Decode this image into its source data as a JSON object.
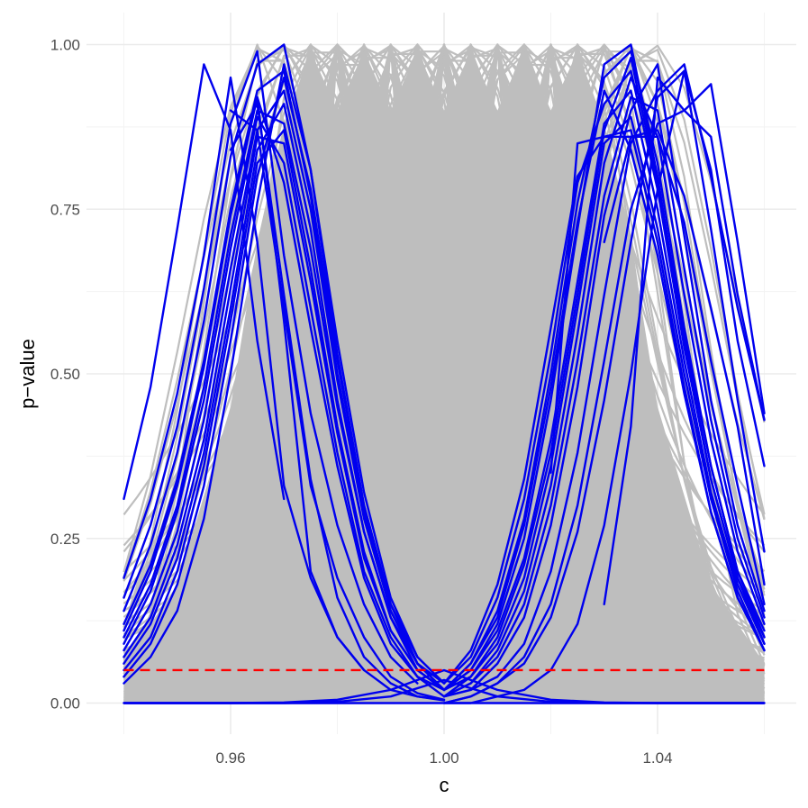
{
  "chart_data": {
    "type": "line",
    "title": "",
    "xlabel": "c",
    "ylabel": "p−value",
    "xlim": [
      0.94,
      1.06
    ],
    "ylim": [
      0,
      1
    ],
    "grid": true,
    "legend": "none",
    "x_ticks": [
      {
        "value": 0.96,
        "label": "0.96"
      },
      {
        "value": 1.0,
        "label": "1.00"
      },
      {
        "value": 1.04,
        "label": "1.04"
      }
    ],
    "y_ticks": [
      {
        "value": 0.0,
        "label": "0.00"
      },
      {
        "value": 0.25,
        "label": "0.25"
      },
      {
        "value": 0.5,
        "label": "0.50"
      },
      {
        "value": 0.75,
        "label": "0.75"
      },
      {
        "value": 1.0,
        "label": "1.00"
      }
    ],
    "reference_line": {
      "y": 0.05,
      "style": "dashed",
      "color": "#ff0000"
    },
    "colors": {
      "gray_curves": "#bebebe",
      "blue_curves": "#0000ee",
      "grid_major": "#ebebeb",
      "grid_minor": "#f3f3f3"
    },
    "gray_curve_peaks": [
      0.975,
      0.98,
      0.985,
      0.99,
      0.995,
      1.0,
      1.005,
      1.01,
      1.015,
      1.02,
      1.025
    ],
    "blue_curves": [
      {
        "x": [
          0.94,
          0.945,
          0.95,
          0.955,
          0.96,
          0.965,
          0.97
        ],
        "y": [
          0.31,
          0.48,
          0.72,
          0.97,
          0.87,
          0.55,
          0.31
        ]
      },
      {
        "x": [
          0.94,
          0.945,
          0.95,
          0.955,
          0.96,
          0.965,
          0.97,
          0.975,
          0.98,
          0.985
        ],
        "y": [
          0.19,
          0.31,
          0.47,
          0.68,
          0.95,
          0.7,
          0.33,
          0.19,
          0.1,
          0.05
        ]
      },
      {
        "x": [
          0.94,
          0.945,
          0.95,
          0.955,
          0.96,
          0.965,
          0.97,
          0.975,
          0.98,
          0.985,
          0.99,
          0.995
        ],
        "y": [
          0.16,
          0.27,
          0.42,
          0.63,
          0.88,
          0.99,
          0.68,
          0.44,
          0.27,
          0.15,
          0.07,
          0.03
        ]
      },
      {
        "x": [
          0.94,
          0.945,
          0.95,
          0.955,
          0.96,
          0.965,
          0.97,
          0.975,
          0.98,
          0.985,
          0.99,
          0.995,
          1.0
        ],
        "y": [
          0.14,
          0.24,
          0.38,
          0.58,
          0.83,
          0.97,
          1.0,
          0.81,
          0.53,
          0.3,
          0.15,
          0.06,
          0.02
        ]
      },
      {
        "x": [
          0.94,
          0.945,
          0.95,
          0.955,
          0.96,
          0.965,
          0.97,
          0.975,
          0.98,
          0.985,
          0.99,
          0.995,
          1.0
        ],
        "y": [
          0.12,
          0.21,
          0.34,
          0.52,
          0.75,
          0.93,
          0.96,
          0.77,
          0.5,
          0.29,
          0.14,
          0.06,
          0.02
        ]
      },
      {
        "x": [
          0.94,
          0.945,
          0.95,
          0.955,
          0.96,
          0.965,
          0.97,
          0.975,
          0.98,
          0.985,
          0.99,
          0.995,
          1.0
        ],
        "y": [
          0.1,
          0.18,
          0.3,
          0.48,
          0.71,
          0.9,
          0.88,
          0.69,
          0.45,
          0.26,
          0.13,
          0.06,
          0.03
        ]
      },
      {
        "x": [
          0.94,
          0.945,
          0.95,
          0.955,
          0.96,
          0.965,
          0.97,
          0.975,
          0.98,
          0.985,
          0.99,
          0.995,
          1.0
        ],
        "y": [
          0.08,
          0.15,
          0.26,
          0.43,
          0.66,
          0.87,
          0.93,
          0.75,
          0.49,
          0.28,
          0.14,
          0.06,
          0.02
        ]
      },
      {
        "x": [
          0.94,
          0.945,
          0.95,
          0.955,
          0.96,
          0.965,
          0.97,
          0.975,
          0.98,
          0.985,
          0.99,
          0.995,
          1.0
        ],
        "y": [
          0.06,
          0.12,
          0.22,
          0.38,
          0.6,
          0.84,
          0.91,
          0.72,
          0.46,
          0.26,
          0.13,
          0.05,
          0.02
        ]
      },
      {
        "x": [
          0.94,
          0.945,
          0.95,
          0.955,
          0.96,
          0.965,
          0.97,
          0.975,
          0.98,
          0.985,
          0.99,
          0.995,
          1.0
        ],
        "y": [
          0.04,
          0.09,
          0.18,
          0.33,
          0.55,
          0.8,
          0.95,
          0.78,
          0.52,
          0.3,
          0.15,
          0.07,
          0.03
        ]
      },
      {
        "x": [
          0.94,
          0.945,
          0.95,
          0.955,
          0.96,
          0.965,
          0.97,
          0.975,
          0.98,
          0.985,
          0.99,
          0.995,
          1.0
        ],
        "y": [
          0.03,
          0.07,
          0.14,
          0.28,
          0.5,
          0.76,
          0.97,
          0.81,
          0.55,
          0.32,
          0.16,
          0.07,
          0.03
        ]
      },
      {
        "x": [
          0.94,
          0.945,
          0.95,
          0.955,
          0.96,
          0.965,
          0.97,
          0.975,
          0.98,
          0.985,
          0.99,
          0.995,
          1.0
        ],
        "y": [
          0.05,
          0.1,
          0.2,
          0.36,
          0.58,
          0.82,
          0.87,
          0.66,
          0.42,
          0.23,
          0.11,
          0.05,
          0.02
        ]
      },
      {
        "x": [
          0.94,
          0.945,
          0.95,
          0.955,
          0.96,
          0.965,
          0.97,
          0.975,
          0.98,
          0.985,
          0.99,
          0.995,
          1.0
        ],
        "y": [
          0.07,
          0.13,
          0.24,
          0.4,
          0.63,
          0.86,
          0.85,
          0.64,
          0.41,
          0.22,
          0.11,
          0.05,
          0.02
        ]
      },
      {
        "x": [
          0.94,
          0.945,
          0.95,
          0.955,
          0.96,
          0.965,
          0.97,
          0.975,
          0.98,
          0.985,
          0.99,
          0.995,
          1.0
        ],
        "y": [
          0.09,
          0.17,
          0.29,
          0.46,
          0.69,
          0.89,
          0.82,
          0.6,
          0.38,
          0.2,
          0.1,
          0.04,
          0.02
        ]
      },
      {
        "x": [
          0.94,
          0.945,
          0.95,
          0.955,
          0.96,
          0.965,
          0.97,
          0.975,
          0.98,
          0.985,
          0.99,
          0.995,
          1.0
        ],
        "y": [
          0.11,
          0.2,
          0.33,
          0.51,
          0.74,
          0.92,
          0.79,
          0.57,
          0.36,
          0.19,
          0.09,
          0.04,
          0.01
        ]
      },
      {
        "x": [
          0.96,
          0.965,
          0.97,
          0.975,
          0.98,
          0.985,
          0.99,
          0.995,
          1.0
        ],
        "y": [
          0.9,
          0.87,
          0.6,
          0.33,
          0.19,
          0.1,
          0.04,
          0.015,
          0.005
        ]
      },
      {
        "x": [
          0.96,
          0.965,
          0.97,
          0.975,
          0.98,
          0.985,
          0.99,
          0.995,
          1.0
        ],
        "y": [
          0.84,
          0.91,
          0.62,
          0.34,
          0.16,
          0.07,
          0.03,
          0.01,
          0.004
        ]
      },
      {
        "x": [
          0.965,
          0.97,
          0.975,
          0.98,
          0.985,
          0.99,
          0.995,
          1.0
        ],
        "y": [
          0.92,
          0.58,
          0.2,
          0.1,
          0.05,
          0.02,
          0.01,
          0.005
        ]
      },
      {
        "x": [
          0.94,
          0.95,
          0.96,
          0.97,
          0.98,
          0.99,
          1.0,
          1.01,
          1.02,
          1.03,
          1.04,
          1.05,
          1.06
        ],
        "y": [
          0.0,
          0.0,
          0.0,
          0.0,
          0.002,
          0.01,
          0.035,
          0.01,
          0.002,
          0.0,
          0.0,
          0.0,
          0.0
        ]
      },
      {
        "x": [
          0.94,
          0.95,
          0.96,
          0.97,
          0.98,
          0.99,
          1.0,
          1.01,
          1.02,
          1.03,
          1.04,
          1.05,
          1.06
        ],
        "y": [
          0.0,
          0.0,
          0.0,
          0.001,
          0.005,
          0.02,
          0.05,
          0.02,
          0.005,
          0.001,
          0.0,
          0.0,
          0.0
        ]
      },
      {
        "x": [
          1.0,
          1.005,
          1.01,
          1.015,
          1.02,
          1.025,
          1.03,
          1.035,
          1.04,
          1.045,
          1.05,
          1.055,
          1.06
        ],
        "y": [
          0.02,
          0.06,
          0.14,
          0.28,
          0.5,
          0.76,
          0.95,
          0.99,
          0.82,
          0.57,
          0.36,
          0.2,
          0.1
        ]
      },
      {
        "x": [
          1.0,
          1.005,
          1.01,
          1.015,
          1.02,
          1.025,
          1.03,
          1.035,
          1.04,
          1.045,
          1.05,
          1.055,
          1.06
        ],
        "y": [
          0.02,
          0.05,
          0.12,
          0.25,
          0.46,
          0.72,
          0.97,
          1.0,
          0.8,
          0.55,
          0.34,
          0.19,
          0.09
        ]
      },
      {
        "x": [
          1.0,
          1.005,
          1.01,
          1.015,
          1.02,
          1.025,
          1.03,
          1.035,
          1.04,
          1.045,
          1.05,
          1.055,
          1.06
        ],
        "y": [
          0.03,
          0.07,
          0.16,
          0.31,
          0.53,
          0.79,
          0.91,
          0.96,
          0.78,
          0.54,
          0.34,
          0.19,
          0.1
        ]
      },
      {
        "x": [
          1.0,
          1.005,
          1.01,
          1.015,
          1.02,
          1.025,
          1.03,
          1.035,
          1.04,
          1.045,
          1.05,
          1.055,
          1.06
        ],
        "y": [
          0.02,
          0.05,
          0.11,
          0.22,
          0.4,
          0.64,
          0.88,
          0.93,
          0.75,
          0.52,
          0.32,
          0.18,
          0.09
        ]
      },
      {
        "x": [
          1.0,
          1.005,
          1.01,
          1.015,
          1.02,
          1.025,
          1.03,
          1.035,
          1.04,
          1.045,
          1.05,
          1.055,
          1.06
        ],
        "y": [
          0.01,
          0.04,
          0.09,
          0.19,
          0.36,
          0.6,
          0.85,
          0.89,
          0.72,
          0.5,
          0.31,
          0.17,
          0.08
        ]
      },
      {
        "x": [
          1.0,
          1.005,
          1.01,
          1.015,
          1.02,
          1.025,
          1.03,
          1.035,
          1.04,
          1.045,
          1.05,
          1.055,
          1.06
        ],
        "y": [
          0.03,
          0.08,
          0.18,
          0.34,
          0.57,
          0.8,
          0.86,
          0.87,
          0.7,
          0.48,
          0.29,
          0.16,
          0.08
        ]
      },
      {
        "x": [
          1.0,
          1.005,
          1.01,
          1.015,
          1.02,
          1.025,
          1.03,
          1.035,
          1.04,
          1.045,
          1.05,
          1.055,
          1.06
        ],
        "y": [
          0.02,
          0.06,
          0.13,
          0.27,
          0.48,
          0.73,
          0.93,
          0.84,
          0.68,
          0.47,
          0.29,
          0.16,
          0.08
        ]
      },
      {
        "x": [
          1.0,
          1.005,
          1.01,
          1.015,
          1.02,
          1.025,
          1.03,
          1.035,
          1.04,
          1.045,
          1.05,
          1.055,
          1.06
        ],
        "y": [
          0.01,
          0.03,
          0.08,
          0.17,
          0.33,
          0.56,
          0.82,
          0.95,
          0.86,
          0.62,
          0.4,
          0.23,
          0.12
        ]
      },
      {
        "x": [
          1.0,
          1.005,
          1.01,
          1.015,
          1.02,
          1.025,
          1.03,
          1.035,
          1.04,
          1.045,
          1.05,
          1.055,
          1.06
        ],
        "y": [
          0.01,
          0.03,
          0.07,
          0.15,
          0.3,
          0.52,
          0.77,
          0.92,
          0.9,
          0.66,
          0.43,
          0.25,
          0.13
        ]
      },
      {
        "x": [
          1.0,
          1.005,
          1.01,
          1.015,
          1.02,
          1.025,
          1.03,
          1.035,
          1.04,
          1.045,
          1.05,
          1.055,
          1.06
        ],
        "y": [
          0.01,
          0.02,
          0.06,
          0.13,
          0.27,
          0.48,
          0.74,
          0.9,
          0.97,
          0.71,
          0.46,
          0.27,
          0.14
        ]
      },
      {
        "x": [
          1.0,
          1.005,
          1.01,
          1.015,
          1.02,
          1.025,
          1.03,
          1.035,
          1.04,
          1.045,
          1.05,
          1.055,
          1.06
        ],
        "y": [
          0.02,
          0.04,
          0.1,
          0.21,
          0.38,
          0.62,
          0.87,
          0.98,
          0.79,
          0.56,
          0.36,
          0.2,
          0.11
        ]
      },
      {
        "x": [
          1.02,
          1.025,
          1.03,
          1.035,
          1.04,
          1.045,
          1.05,
          1.055,
          1.06
        ],
        "y": [
          0.35,
          0.85,
          0.86,
          0.86,
          0.87,
          0.77,
          0.6,
          0.42,
          0.18
        ]
      },
      {
        "x": [
          1.03,
          1.035,
          1.04,
          1.045,
          1.05,
          1.055,
          1.06
        ],
        "y": [
          0.7,
          0.86,
          0.86,
          0.73,
          0.52,
          0.33,
          0.15
        ]
      },
      {
        "x": [
          1.0,
          1.005,
          1.01,
          1.015,
          1.02,
          1.025,
          1.03,
          1.035,
          1.04,
          1.045,
          1.05,
          1.055,
          1.06
        ],
        "y": [
          0.01,
          0.02,
          0.04,
          0.09,
          0.2,
          0.38,
          0.62,
          0.85,
          0.93,
          0.97,
          0.8,
          0.6,
          0.43
        ]
      },
      {
        "x": [
          1.0,
          1.005,
          1.01,
          1.015,
          1.02,
          1.025,
          1.03,
          1.035,
          1.04,
          1.045,
          1.05,
          1.055,
          1.06
        ],
        "y": [
          0.0,
          0.01,
          0.03,
          0.07,
          0.15,
          0.3,
          0.52,
          0.75,
          0.88,
          0.9,
          0.94,
          0.7,
          0.44
        ]
      },
      {
        "x": [
          1.0,
          1.005,
          1.01,
          1.015,
          1.02,
          1.025,
          1.03,
          1.035,
          1.04,
          1.045,
          1.05,
          1.055,
          1.06
        ],
        "y": [
          0.0,
          0.01,
          0.03,
          0.06,
          0.13,
          0.26,
          0.46,
          0.7,
          0.92,
          0.96,
          0.72,
          0.46,
          0.23
        ]
      },
      {
        "x": [
          1.0,
          1.005,
          1.01,
          1.015,
          1.02,
          1.025,
          1.03,
          1.035,
          1.04,
          1.045,
          1.05,
          1.055,
          1.06
        ],
        "y": [
          0.0,
          0.0,
          0.01,
          0.02,
          0.05,
          0.12,
          0.27,
          0.5,
          0.78,
          0.96,
          0.81,
          0.55,
          0.36
        ]
      },
      {
        "x": [
          1.03,
          1.035,
          1.04,
          1.045,
          1.05,
          1.055,
          1.06
        ],
        "y": [
          0.15,
          0.42,
          0.95,
          0.9,
          0.86,
          0.62,
          0.43
        ]
      }
    ]
  }
}
